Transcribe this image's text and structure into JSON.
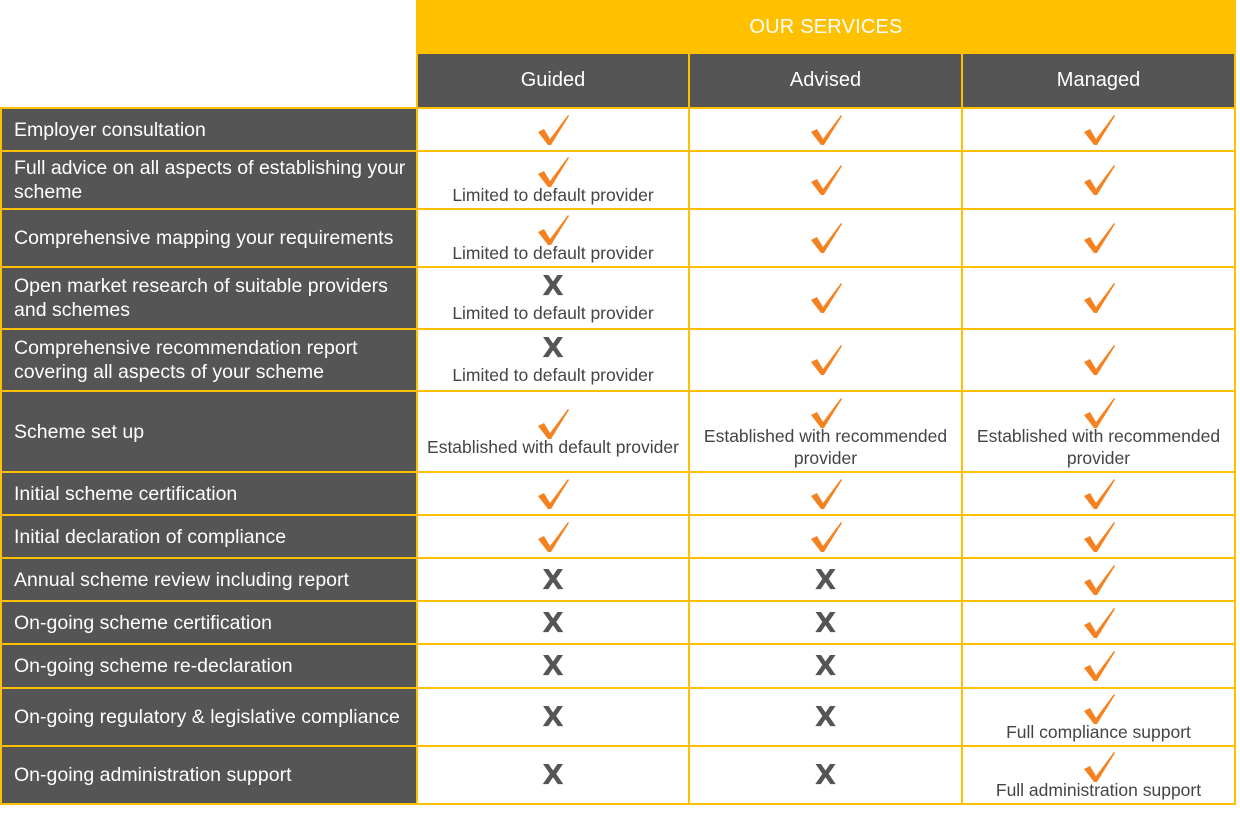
{
  "title": "OUR SERVICES",
  "columns": [
    "Guided",
    "Advised",
    "Managed"
  ],
  "colors": {
    "accent": "#ffc000",
    "dark": "#555555",
    "check": "#f58220"
  },
  "rows": [
    {
      "feature": "Employer consultation",
      "cells": [
        {
          "mark": "check"
        },
        {
          "mark": "check"
        },
        {
          "mark": "check"
        }
      ]
    },
    {
      "feature": "Full advice on all aspects of establishing your scheme",
      "cells": [
        {
          "mark": "check",
          "note": "Limited to default provider"
        },
        {
          "mark": "check"
        },
        {
          "mark": "check"
        }
      ]
    },
    {
      "feature": "Comprehensive mapping your requirements",
      "cells": [
        {
          "mark": "check",
          "note": "Limited to default provider"
        },
        {
          "mark": "check"
        },
        {
          "mark": "check"
        }
      ]
    },
    {
      "feature": "Open market research of suitable providers and schemes",
      "cells": [
        {
          "mark": "cross",
          "note": "Limited to default provider"
        },
        {
          "mark": "check"
        },
        {
          "mark": "check"
        }
      ]
    },
    {
      "feature": "Comprehensive recommendation report covering all aspects of your scheme",
      "cells": [
        {
          "mark": "cross",
          "note": "Limited to default provider"
        },
        {
          "mark": "check"
        },
        {
          "mark": "check"
        }
      ]
    },
    {
      "feature": "Scheme set up",
      "cells": [
        {
          "mark": "check",
          "note": "Established with default provider"
        },
        {
          "mark": "check",
          "note": "Established with recommended provider"
        },
        {
          "mark": "check",
          "note": "Established with recommended provider"
        }
      ]
    },
    {
      "feature": "Initial scheme certification",
      "cells": [
        {
          "mark": "check"
        },
        {
          "mark": "check"
        },
        {
          "mark": "check"
        }
      ]
    },
    {
      "feature": "Initial declaration of compliance",
      "cells": [
        {
          "mark": "check"
        },
        {
          "mark": "check"
        },
        {
          "mark": "check"
        }
      ]
    },
    {
      "feature": "Annual scheme review including report",
      "cells": [
        {
          "mark": "cross"
        },
        {
          "mark": "cross"
        },
        {
          "mark": "check"
        }
      ]
    },
    {
      "feature": "On-going scheme certification",
      "cells": [
        {
          "mark": "cross"
        },
        {
          "mark": "cross"
        },
        {
          "mark": "check"
        }
      ]
    },
    {
      "feature": "On-going scheme re-declaration",
      "cells": [
        {
          "mark": "cross"
        },
        {
          "mark": "cross"
        },
        {
          "mark": "check"
        }
      ]
    },
    {
      "feature": "On-going regulatory & legislative compliance",
      "cells": [
        {
          "mark": "cross"
        },
        {
          "mark": "cross"
        },
        {
          "mark": "check",
          "note": "Full compliance support"
        }
      ]
    },
    {
      "feature": "On-going administration support",
      "cells": [
        {
          "mark": "cross"
        },
        {
          "mark": "cross"
        },
        {
          "mark": "check",
          "note": "Full administration support"
        }
      ]
    }
  ],
  "cross_glyph": "X"
}
